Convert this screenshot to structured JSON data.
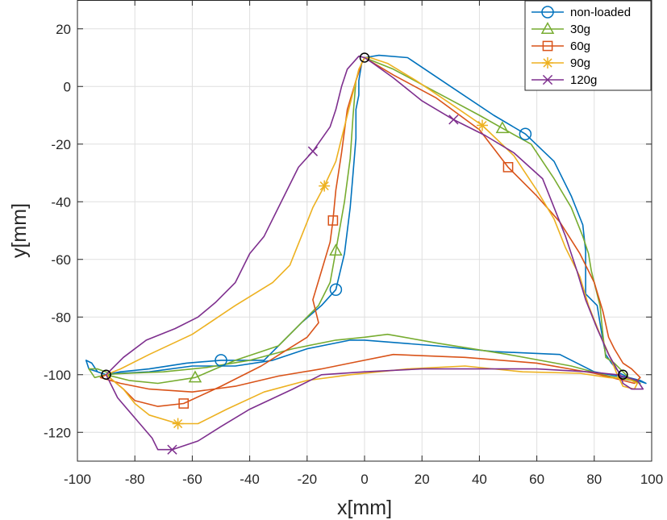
{
  "chart_data": {
    "type": "line",
    "title": "",
    "xlabel": "x[mm]",
    "ylabel": "y[mm]",
    "xlim": [
      -100,
      100
    ],
    "ylim": [
      -130,
      30
    ],
    "xticks": [
      -100,
      -80,
      -60,
      -40,
      -20,
      0,
      20,
      40,
      60,
      80,
      100
    ],
    "yticks": [
      -120,
      -100,
      -80,
      -60,
      -40,
      -20,
      0,
      20
    ],
    "xtick_labels": [
      "-100",
      "-80",
      "-60",
      "-40",
      "-20",
      "0",
      "20",
      "40",
      "60",
      "80",
      "100"
    ],
    "ytick_labels": [
      "-120",
      "-100",
      "-80",
      "-60",
      "-40",
      "-20",
      "0",
      "20"
    ],
    "grid": true,
    "legend_position": "top-right",
    "target_color": "#000000",
    "targets": [
      [
        0,
        10
      ],
      [
        -90,
        -100
      ],
      [
        90,
        -100
      ]
    ],
    "series": [
      {
        "name": "non-loaded",
        "color": "#0072BD",
        "marker": "circle",
        "marker_points": [
          [
            56,
            -16.5
          ],
          [
            -10,
            -70.5
          ],
          [
            -50,
            -95
          ]
        ],
        "points": [
          [
            -90,
            -100
          ],
          [
            -85,
            -99
          ],
          [
            -75,
            -98
          ],
          [
            -62,
            -96
          ],
          [
            -50,
            -95
          ],
          [
            -35,
            -95
          ],
          [
            -22,
            -82
          ],
          [
            -15,
            -76
          ],
          [
            -10,
            -70.5
          ],
          [
            -7,
            -58
          ],
          [
            -5,
            -42
          ],
          [
            -4,
            -30
          ],
          [
            -3,
            -18
          ],
          [
            -3,
            -8
          ],
          [
            -2,
            -3
          ],
          [
            -2,
            2
          ],
          [
            -1,
            8
          ],
          [
            0,
            10
          ],
          [
            5,
            10.8
          ],
          [
            15,
            10
          ],
          [
            30,
            0
          ],
          [
            45,
            -10
          ],
          [
            56,
            -16.5
          ],
          [
            66,
            -26
          ],
          [
            72,
            -38
          ],
          [
            76,
            -48
          ],
          [
            77,
            -57
          ],
          [
            77,
            -72
          ],
          [
            81,
            -76
          ],
          [
            82,
            -82
          ],
          [
            83,
            -88
          ],
          [
            84,
            -93
          ],
          [
            86,
            -96
          ],
          [
            89,
            -99.5
          ],
          [
            92,
            -101
          ],
          [
            96,
            -102
          ],
          [
            98,
            -103
          ],
          [
            95,
            -102
          ],
          [
            88,
            -100.5
          ],
          [
            80,
            -99
          ],
          [
            68,
            -93
          ],
          [
            45,
            -92
          ],
          [
            25,
            -90
          ],
          [
            0,
            -88
          ],
          [
            -5,
            -88
          ],
          [
            -20,
            -91
          ],
          [
            -32,
            -95
          ],
          [
            -45,
            -97
          ],
          [
            -60,
            -97
          ],
          [
            -75,
            -99
          ],
          [
            -85,
            -99.5
          ],
          [
            -90,
            -100
          ],
          [
            -96,
            -98
          ],
          [
            -97,
            -95
          ],
          [
            -95,
            -96
          ],
          [
            -93,
            -99
          ],
          [
            -90,
            -100
          ]
        ]
      },
      {
        "name": "30g",
        "color": "#77AC30",
        "marker": "triangle",
        "marker_points": [
          [
            48,
            -14.5
          ],
          [
            -10,
            -57
          ],
          [
            -59,
            -101
          ]
        ],
        "points": [
          [
            -90,
            -100
          ],
          [
            -82,
            -102
          ],
          [
            -72,
            -103
          ],
          [
            -59,
            -101
          ],
          [
            -45,
            -95
          ],
          [
            -30,
            -90
          ],
          [
            -24,
            -84
          ],
          [
            -16,
            -76
          ],
          [
            -12,
            -68
          ],
          [
            -10,
            -57
          ],
          [
            -7,
            -40
          ],
          [
            -5,
            -25
          ],
          [
            -4,
            -10
          ],
          [
            -3,
            2
          ],
          [
            -1,
            8
          ],
          [
            0,
            10
          ],
          [
            10,
            6
          ],
          [
            25,
            -2
          ],
          [
            40,
            -10
          ],
          [
            48,
            -14.5
          ],
          [
            58,
            -20
          ],
          [
            66,
            -32
          ],
          [
            72,
            -42
          ],
          [
            76,
            -52
          ],
          [
            78,
            -58
          ],
          [
            79,
            -64
          ],
          [
            82,
            -76
          ],
          [
            83,
            -86
          ],
          [
            84,
            -94
          ],
          [
            87,
            -96
          ],
          [
            89,
            -98
          ],
          [
            92,
            -101
          ],
          [
            96,
            -103
          ],
          [
            93,
            -102
          ],
          [
            85,
            -100.5
          ],
          [
            72,
            -97
          ],
          [
            50,
            -93
          ],
          [
            25,
            -89
          ],
          [
            8,
            -86
          ],
          [
            0,
            -87
          ],
          [
            -10,
            -88
          ],
          [
            -25,
            -91
          ],
          [
            -40,
            -95
          ],
          [
            -55,
            -97.5
          ],
          [
            -70,
            -99
          ],
          [
            -82,
            -99.5
          ],
          [
            -88,
            -99.8
          ],
          [
            -93,
            -98
          ],
          [
            -96,
            -98
          ],
          [
            -94,
            -101
          ],
          [
            -90,
            -100
          ]
        ]
      },
      {
        "name": "60g",
        "color": "#D95319",
        "marker": "square",
        "marker_points": [
          [
            50,
            -28
          ],
          [
            -11,
            -46.5
          ],
          [
            -63,
            -110
          ]
        ],
        "points": [
          [
            -90,
            -100
          ],
          [
            -84,
            -105
          ],
          [
            -80,
            -109
          ],
          [
            -72,
            -111
          ],
          [
            -63,
            -110
          ],
          [
            -50,
            -104
          ],
          [
            -36,
            -97
          ],
          [
            -28,
            -92
          ],
          [
            -20,
            -87
          ],
          [
            -16,
            -82
          ],
          [
            -18,
            -74
          ],
          [
            -15,
            -64
          ],
          [
            -12,
            -54
          ],
          [
            -11,
            -46.5
          ],
          [
            -10,
            -36
          ],
          [
            -8,
            -23
          ],
          [
            -6,
            -8
          ],
          [
            -3,
            2
          ],
          [
            -1,
            8
          ],
          [
            0,
            10
          ],
          [
            10,
            4
          ],
          [
            25,
            -4
          ],
          [
            40,
            -15
          ],
          [
            50,
            -28
          ],
          [
            60,
            -38
          ],
          [
            68,
            -47
          ],
          [
            75,
            -58
          ],
          [
            80,
            -68
          ],
          [
            83,
            -78
          ],
          [
            85,
            -87
          ],
          [
            87,
            -91
          ],
          [
            90,
            -96
          ],
          [
            93,
            -98
          ],
          [
            96,
            -101
          ],
          [
            94,
            -103
          ],
          [
            90,
            -102
          ],
          [
            80,
            -99.5
          ],
          [
            60,
            -96
          ],
          [
            35,
            -94
          ],
          [
            10,
            -93
          ],
          [
            -5,
            -96
          ],
          [
            -15,
            -98
          ],
          [
            -30,
            -100.5
          ],
          [
            -45,
            -104
          ],
          [
            -60,
            -106
          ],
          [
            -75,
            -105
          ],
          [
            -85,
            -103
          ],
          [
            -92,
            -101
          ],
          [
            -90,
            -100
          ]
        ]
      },
      {
        "name": "90g",
        "color": "#EDB120",
        "marker": "asterisk",
        "marker_points": [
          [
            41,
            -13.5
          ],
          [
            -14,
            -34.5
          ],
          [
            -65,
            -117
          ]
        ],
        "points": [
          [
            -90,
            -100
          ],
          [
            -84,
            -105
          ],
          [
            -80,
            -110
          ],
          [
            -75,
            -114
          ],
          [
            -65,
            -117
          ],
          [
            -58,
            -117
          ],
          [
            -48,
            -112
          ],
          [
            -35,
            -106
          ],
          [
            -20,
            -102
          ],
          [
            -5,
            -100
          ],
          [
            15,
            -98
          ],
          [
            35,
            -97
          ],
          [
            55,
            -99
          ],
          [
            75,
            -99.5
          ],
          [
            85,
            -101
          ],
          [
            92,
            -101.5
          ],
          [
            95,
            -103
          ],
          [
            94,
            -105
          ],
          [
            90,
            -104
          ],
          [
            88,
            -100
          ],
          [
            86,
            -95
          ],
          [
            82,
            -86
          ],
          [
            78,
            -76
          ],
          [
            75,
            -66
          ],
          [
            70,
            -56
          ],
          [
            66,
            -46
          ],
          [
            60,
            -36
          ],
          [
            52,
            -24
          ],
          [
            41,
            -13.5
          ],
          [
            30,
            -6
          ],
          [
            18,
            2
          ],
          [
            8,
            8
          ],
          [
            2,
            10
          ],
          [
            0,
            10
          ],
          [
            -2,
            6
          ],
          [
            -4,
            -2
          ],
          [
            -6,
            -10
          ],
          [
            -8,
            -18
          ],
          [
            -10,
            -26
          ],
          [
            -14,
            -34.5
          ],
          [
            -18,
            -42
          ],
          [
            -22,
            -52
          ],
          [
            -26,
            -62
          ],
          [
            -32,
            -68
          ],
          [
            -45,
            -76
          ],
          [
            -60,
            -86
          ],
          [
            -75,
            -93
          ],
          [
            -85,
            -98
          ],
          [
            -90,
            -100
          ]
        ]
      },
      {
        "name": "120g",
        "color": "#7E2F8E",
        "marker": "x",
        "marker_points": [
          [
            31,
            -11.5
          ],
          [
            -18,
            -22.5
          ],
          [
            -67,
            -126
          ]
        ],
        "points": [
          [
            -90,
            -100
          ],
          [
            -86,
            -108
          ],
          [
            -80,
            -115
          ],
          [
            -74,
            -122
          ],
          [
            -72,
            -126
          ],
          [
            -67,
            -126
          ],
          [
            -58,
            -123
          ],
          [
            -50,
            -118
          ],
          [
            -40,
            -112
          ],
          [
            -25,
            -105
          ],
          [
            -15,
            -100
          ],
          [
            0,
            -99
          ],
          [
            20,
            -98
          ],
          [
            40,
            -98
          ],
          [
            60,
            -98
          ],
          [
            78,
            -99
          ],
          [
            88,
            -100
          ],
          [
            95,
            -102
          ],
          [
            97,
            -105
          ],
          [
            93,
            -105
          ],
          [
            90,
            -103
          ],
          [
            89,
            -100
          ],
          [
            85,
            -93
          ],
          [
            81,
            -84
          ],
          [
            77,
            -74
          ],
          [
            74,
            -64
          ],
          [
            70,
            -52
          ],
          [
            66,
            -42
          ],
          [
            62,
            -32
          ],
          [
            52,
            -23
          ],
          [
            42,
            -17
          ],
          [
            31,
            -11.5
          ],
          [
            20,
            -5
          ],
          [
            10,
            3
          ],
          [
            3,
            8
          ],
          [
            0,
            10
          ],
          [
            -2,
            10.5
          ],
          [
            -6,
            6
          ],
          [
            -8,
            0
          ],
          [
            -10,
            -8
          ],
          [
            -12,
            -14
          ],
          [
            -18,
            -22.5
          ],
          [
            -23,
            -28
          ],
          [
            -27,
            -36
          ],
          [
            -31,
            -44
          ],
          [
            -35,
            -52
          ],
          [
            -40,
            -58
          ],
          [
            -45,
            -68
          ],
          [
            -52,
            -75
          ],
          [
            -58,
            -80
          ],
          [
            -66,
            -84
          ],
          [
            -76,
            -88
          ],
          [
            -84,
            -94
          ],
          [
            -88,
            -98
          ],
          [
            -90,
            -100
          ]
        ]
      }
    ]
  }
}
